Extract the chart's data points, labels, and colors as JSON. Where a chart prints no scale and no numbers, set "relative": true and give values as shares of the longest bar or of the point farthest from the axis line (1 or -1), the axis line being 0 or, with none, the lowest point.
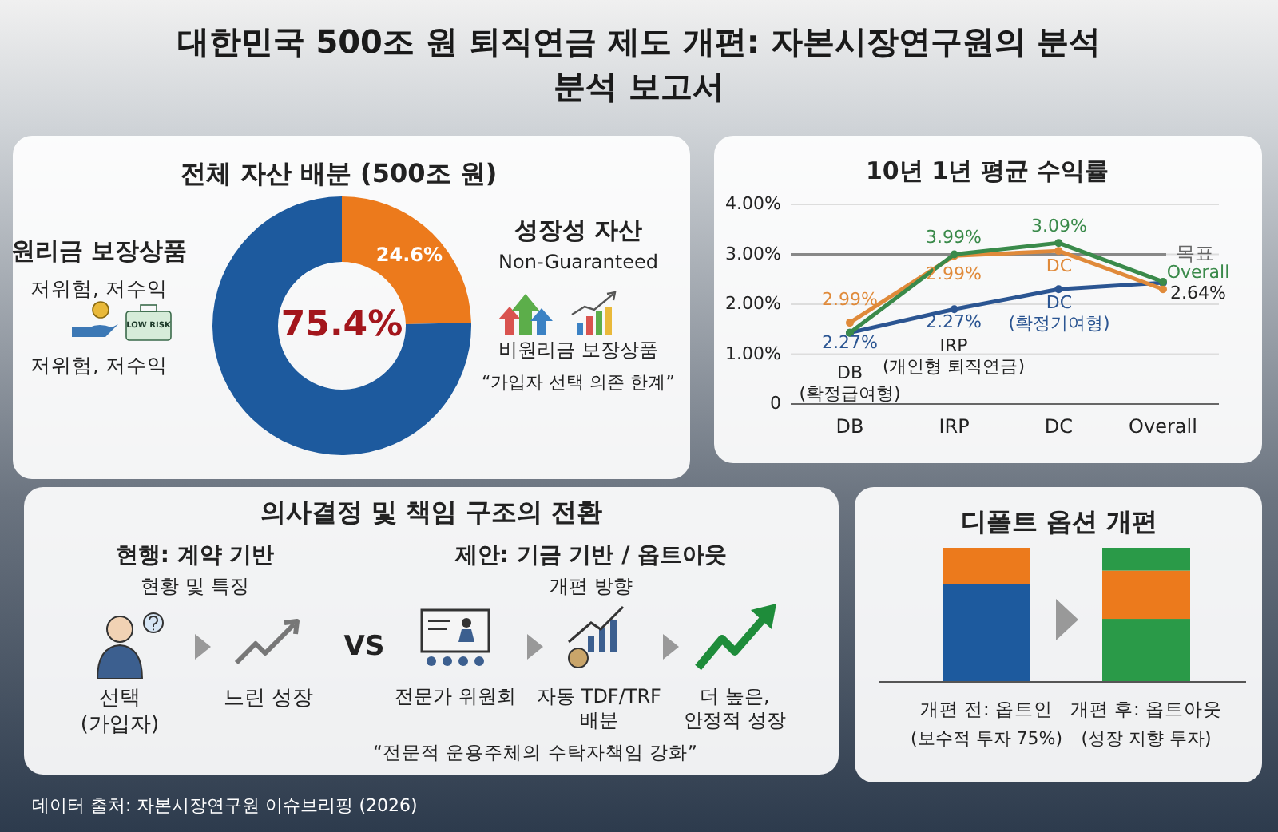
{
  "chart_data": [
    {
      "type": "other",
      "title": "대한민국 500조 원 퇴직연금 제도 개편: 자본시장연구원의 분석\n분석 보고서",
      "annotations": [
        "데이터 출처: 자본시장연구원 이슈브리핑 (2026)"
      ]
    },
    {
      "type": "donut",
      "title": "전체 자산 배분 (500조 원)",
      "categories": [
        "성장성 자산",
        "원리금 보장상품"
      ],
      "values": [
        24.6,
        75.4
      ],
      "colors": [
        "#ec7a1c",
        "#1d5a9e"
      ],
      "value_labels": [
        "24.6%",
        "75.4%"
      ],
      "annotations": [
        "저위험, 저수익",
        "Non-Guaranteed",
        "비원리금 보장상품",
        "“가입자 선택 의존 한계”",
        "저위험, 저수익",
        "LOW RISK"
      ]
    },
    {
      "type": "line",
      "title": "10년 1년 평균 수익률",
      "categories": [
        "DB",
        "IRP",
        "DC",
        "Overall"
      ],
      "series": [
        {
          "color": "#2b5592",
          "values": [
            1.43,
            1.9,
            2.3,
            2.43
          ]
        },
        {
          "color": "#e08a3a",
          "values": [
            1.63,
            2.97,
            3.07,
            2.3
          ]
        },
        {
          "color": "#3a8a4a",
          "values": [
            1.43,
            3.0,
            3.23,
            2.45
          ]
        }
      ],
      "ylim": [
        0,
        4
      ],
      "yticks": [
        0,
        {
          "value": 1,
          "label": "1.00%"
        },
        {
          "value": 2,
          "label": "2.00%"
        },
        {
          "value": 3,
          "label": "3.00%"
        },
        {
          "value": 4,
          "label": "4.00%"
        }
      ],
      "grid": "y",
      "marker": "circle",
      "ref_lines": [
        {
          "axis": "y",
          "value": 3,
          "label": "목표",
          "color": "#888888"
        }
      ],
      "annotations": [
        "2.99%",
        "2.27%",
        "DB\n(확정급여형)",
        "3.99%",
        "2.99%",
        "2.27%",
        "IRP\n(개인형 퇴직연금)",
        "3.09%",
        "DC",
        "DC\n(확정기여형)",
        "Overall",
        "2.64%"
      ]
    },
    {
      "type": "other",
      "title": "의사결정 및 책임 구조의 전환",
      "annotations": [
        "현행: 계약 기반",
        "현황 및 특징",
        "선택\n(가입자)",
        "느린 성장",
        "VS",
        "제안: 기금 기반 / 옵트아웃",
        "개편 방향",
        "전문가 위원회",
        "자동 TDF/TRF\n배분",
        "더 높은,\n안정적 성장",
        "“전문적 운용주체의 수탁자책임 강화”"
      ]
    },
    {
      "type": "bar",
      "stacked": true,
      "relative": true,
      "title": "디폴트 옵션 개편",
      "categories": [
        "개편 전: 옵트인",
        "개편 후: 옵트아웃"
      ],
      "series": [
        {
          "color": "#1d5a9e",
          "values": [
            0.73,
            null
          ]
        },
        {
          "color": "#2a9a48",
          "values": [
            null,
            0.47
          ]
        },
        {
          "color": "#ec7a1c",
          "values": [
            0.27,
            0.36
          ]
        },
        {
          "color": "#2a9a48",
          "values": [
            null,
            0.17
          ]
        }
      ],
      "annotations": [
        "(보수적 투자 75%)",
        "(성장 지향 투자)"
      ]
    }
  ]
}
